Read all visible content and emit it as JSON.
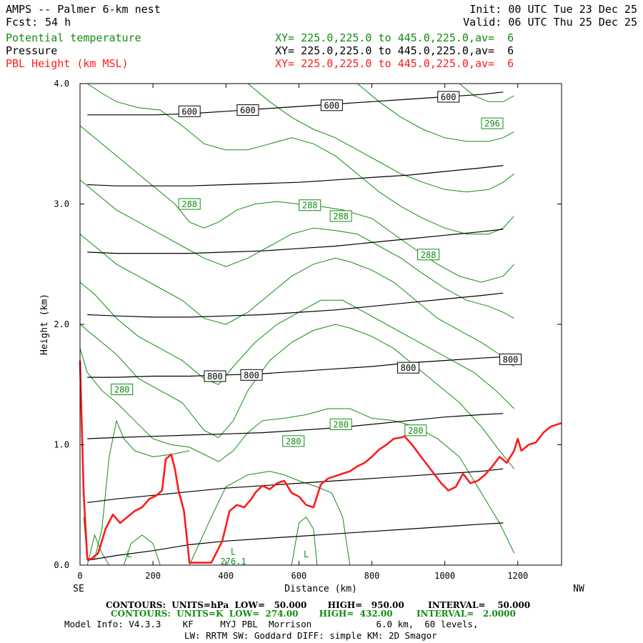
{
  "header": {
    "model_title": "AMPS -- Palmer 6-km nest",
    "forecast_label": "Fcst:",
    "forecast_hours": "54 h",
    "init": "Init: 00 UTC Tue 23 Dec 25",
    "valid": "Valid: 06 UTC Thu 25 Dec 25"
  },
  "fields": [
    {
      "name": "Potential temperature",
      "xy": "XY= 225.0,225.0 to 445.0,225.0,av=  6",
      "color": "#118c11"
    },
    {
      "name": "Pressure",
      "xy": "XY= 225.0,225.0 to 445.0,225.0,av=  6",
      "color": "#000000"
    },
    {
      "name": "PBL Height (km MSL)",
      "xy": "XY= 225.0,225.0 to 445.0,225.0,av=  6",
      "color": "#ff1a1a"
    }
  ],
  "footer": {
    "pressure_contours": "CONTOURS:  UNITS=hPa  LOW=   50.000       HIGH=   950.00        INTERVAL=    50.000",
    "theta_contours": "CONTOURS:  UNITS=K  LOW=  274.00       HIGH=  432.00        INTERVAL=   2.0000",
    "model_info": "Model Info: V4.3.3    KF     MYJ PBL  Morrison            6.0 km,  60 levels,",
    "physics": "LW: RRTM SW: Goddard DIFF: simple KM: 2D Smagor"
  },
  "chart_data": {
    "type": "line",
    "xlabel": "Distance (km)",
    "ylabel": "Height (km)",
    "xlim": [
      0,
      1320
    ],
    "ylim": [
      0,
      4.0
    ],
    "xticks": [
      0,
      200,
      400,
      600,
      800,
      1000,
      1200
    ],
    "yticks": [
      0.0,
      1.0,
      2.0,
      3.0,
      4.0
    ],
    "x_start_label": "SE",
    "x_end_label": "NW",
    "grid": false,
    "colors": {
      "pressure": "#000000",
      "theta": "#118c11",
      "pbl": "#ff1a1a"
    },
    "pbl_height": {
      "name": "PBL Height (km MSL)",
      "x": [
        0,
        10,
        20,
        30,
        50,
        70,
        90,
        110,
        130,
        150,
        170,
        190,
        210,
        225,
        235,
        250,
        260,
        270,
        285,
        300,
        330,
        360,
        390,
        410,
        430,
        450,
        470,
        480,
        500,
        520,
        540,
        560,
        580,
        600,
        620,
        640,
        660,
        680,
        700,
        720,
        740,
        760,
        780,
        800,
        820,
        840,
        860,
        880,
        890,
        910,
        930,
        950,
        970,
        990,
        1010,
        1030,
        1050,
        1070,
        1090,
        1110,
        1130,
        1150,
        1170,
        1190,
        1200,
        1210,
        1230,
        1250,
        1270,
        1290,
        1320
      ],
      "y": [
        1.7,
        0.6,
        0.05,
        0.05,
        0.1,
        0.3,
        0.42,
        0.35,
        0.4,
        0.45,
        0.48,
        0.55,
        0.58,
        0.62,
        0.88,
        0.92,
        0.8,
        0.62,
        0.45,
        0.02,
        0.02,
        0.02,
        0.2,
        0.45,
        0.5,
        0.48,
        0.55,
        0.6,
        0.66,
        0.63,
        0.68,
        0.7,
        0.6,
        0.57,
        0.5,
        0.48,
        0.67,
        0.72,
        0.74,
        0.76,
        0.78,
        0.82,
        0.85,
        0.9,
        0.96,
        1.0,
        1.05,
        1.06,
        1.07,
        1.0,
        0.92,
        0.84,
        0.76,
        0.68,
        0.62,
        0.65,
        0.76,
        0.68,
        0.7,
        0.75,
        0.82,
        0.9,
        0.85,
        0.95,
        1.05,
        0.95,
        1.0,
        1.02,
        1.1,
        1.15,
        1.18
      ]
    },
    "pressure_contours": [
      {
        "level": 950,
        "x": [
          20,
          100,
          200,
          300,
          400,
          500,
          600,
          700,
          800,
          900,
          1000,
          1100,
          1160
        ],
        "y": [
          0.04,
          0.08,
          0.12,
          0.17,
          0.2,
          0.22,
          0.24,
          0.26,
          0.28,
          0.3,
          0.32,
          0.34,
          0.35
        ]
      },
      {
        "level": 900,
        "x": [
          20,
          100,
          200,
          300,
          400,
          500,
          600,
          700,
          800,
          900,
          1000,
          1100,
          1160
        ],
        "y": [
          0.52,
          0.55,
          0.58,
          0.61,
          0.64,
          0.66,
          0.68,
          0.7,
          0.72,
          0.74,
          0.76,
          0.78,
          0.8
        ]
      },
      {
        "level": 850,
        "x": [
          20,
          100,
          200,
          300,
          400,
          500,
          600,
          700,
          800,
          900,
          1000,
          1100,
          1160
        ],
        "y": [
          1.05,
          1.06,
          1.07,
          1.08,
          1.09,
          1.1,
          1.12,
          1.14,
          1.17,
          1.2,
          1.23,
          1.25,
          1.26
        ]
      },
      {
        "level": 800,
        "x": [
          20,
          100,
          200,
          300,
          400,
          500,
          600,
          700,
          800,
          900,
          1000,
          1100,
          1160
        ],
        "y": [
          1.56,
          1.56,
          1.57,
          1.57,
          1.58,
          1.59,
          1.61,
          1.63,
          1.65,
          1.68,
          1.7,
          1.72,
          1.73
        ]
      },
      {
        "level": 750,
        "x": [
          20,
          100,
          200,
          300,
          400,
          500,
          600,
          700,
          800,
          900,
          1000,
          1100,
          1160
        ],
        "y": [
          2.08,
          2.07,
          2.06,
          2.06,
          2.07,
          2.08,
          2.1,
          2.12,
          2.15,
          2.18,
          2.21,
          2.24,
          2.26
        ]
      },
      {
        "level": 700,
        "x": [
          20,
          100,
          200,
          300,
          400,
          500,
          600,
          700,
          800,
          900,
          1000,
          1100,
          1160
        ],
        "y": [
          2.6,
          2.59,
          2.59,
          2.59,
          2.6,
          2.61,
          2.63,
          2.65,
          2.68,
          2.71,
          2.74,
          2.77,
          2.79
        ]
      },
      {
        "level": 650,
        "x": [
          20,
          100,
          200,
          300,
          400,
          500,
          600,
          700,
          800,
          900,
          1000,
          1100,
          1160
        ],
        "y": [
          3.16,
          3.15,
          3.15,
          3.15,
          3.16,
          3.17,
          3.18,
          3.2,
          3.22,
          3.24,
          3.27,
          3.3,
          3.32
        ]
      },
      {
        "level": 600,
        "x": [
          20,
          100,
          200,
          300,
          400,
          500,
          600,
          700,
          800,
          900,
          1000,
          1100,
          1160
        ],
        "y": [
          3.74,
          3.74,
          3.74,
          3.75,
          3.77,
          3.79,
          3.81,
          3.83,
          3.85,
          3.87,
          3.89,
          3.91,
          3.93
        ]
      }
    ],
    "theta_contours": [
      {
        "x": [
          10,
          20,
          40,
          60,
          80,
          100,
          120,
          150,
          200,
          250,
          300
        ],
        "y": [
          0.4,
          0.05,
          0.05,
          0.3,
          0.9,
          1.2,
          1.05,
          0.95,
          0.9,
          0.92,
          0.95
        ]
      },
      {
        "x": [
          0,
          20,
          60,
          100,
          150,
          200,
          250,
          300,
          340,
          380,
          420,
          460,
          500,
          560,
          620,
          680,
          740,
          800,
          860,
          920,
          980,
          1040,
          1100,
          1150,
          1190
        ],
        "y": [
          1.8,
          1.6,
          1.45,
          1.35,
          1.2,
          1.05,
          1.0,
          0.98,
          0.92,
          0.86,
          0.95,
          1.1,
          1.2,
          1.22,
          1.25,
          1.3,
          1.3,
          1.22,
          1.2,
          1.15,
          1.05,
          0.9,
          0.6,
          0.35,
          0.1
        ]
      },
      {
        "x": [
          0,
          40,
          100,
          160,
          220,
          280,
          340,
          380,
          420,
          460,
          520,
          580,
          640,
          700,
          740,
          800,
          860,
          920,
          980,
          1040,
          1100,
          1150,
          1190
        ],
        "y": [
          2.0,
          1.9,
          1.75,
          1.55,
          1.45,
          1.35,
          1.12,
          1.06,
          1.2,
          1.45,
          1.7,
          1.85,
          1.95,
          2.0,
          1.97,
          1.9,
          1.8,
          1.65,
          1.5,
          1.35,
          1.15,
          0.95,
          0.8
        ]
      },
      {
        "x": [
          0,
          40,
          100,
          160,
          220,
          280,
          340,
          380,
          420,
          480,
          540,
          600,
          660,
          720,
          780,
          840,
          900,
          960,
          1020,
          1080,
          1140,
          1190
        ],
        "y": [
          2.35,
          2.25,
          2.05,
          1.9,
          1.8,
          1.7,
          1.55,
          1.5,
          1.65,
          1.85,
          2.0,
          2.1,
          2.2,
          2.2,
          2.1,
          2.0,
          1.9,
          1.8,
          1.7,
          1.6,
          1.45,
          1.3
        ]
      },
      {
        "x": [
          0,
          40,
          100,
          160,
          220,
          280,
          340,
          400,
          460,
          520,
          580,
          640,
          700,
          740,
          800,
          860,
          920,
          980,
          1040,
          1100,
          1150,
          1190
        ],
        "y": [
          2.75,
          2.65,
          2.5,
          2.4,
          2.3,
          2.2,
          2.05,
          2.0,
          2.1,
          2.25,
          2.4,
          2.5,
          2.55,
          2.52,
          2.45,
          2.35,
          2.2,
          2.05,
          1.95,
          1.85,
          1.75,
          1.65
        ]
      },
      {
        "x": [
          0,
          40,
          100,
          160,
          220,
          280,
          340,
          400,
          460,
          520,
          580,
          640,
          700,
          760,
          820,
          880,
          940,
          1000,
          1060,
          1120,
          1160,
          1190
        ],
        "y": [
          3.2,
          3.1,
          2.95,
          2.85,
          2.75,
          2.65,
          2.55,
          2.48,
          2.55,
          2.65,
          2.75,
          2.8,
          2.78,
          2.75,
          2.65,
          2.55,
          2.42,
          2.3,
          2.2,
          2.15,
          2.1,
          2.05
        ]
      },
      {
        "x": [
          0,
          40,
          100,
          160,
          220,
          260,
          300,
          340,
          380,
          430,
          480,
          540,
          600,
          660,
          720,
          800,
          860,
          920,
          980,
          1040,
          1100,
          1160,
          1190
        ],
        "y": [
          3.65,
          3.55,
          3.4,
          3.25,
          3.1,
          3.0,
          2.85,
          2.8,
          2.85,
          2.95,
          3.0,
          3.02,
          3.0,
          2.98,
          2.95,
          2.88,
          2.75,
          2.62,
          2.5,
          2.4,
          2.35,
          2.4,
          2.5
        ]
      },
      {
        "x": [
          20,
          60,
          100,
          160,
          220,
          280,
          340,
          400,
          460,
          520,
          580,
          640,
          700,
          760,
          820,
          880,
          940,
          1000,
          1060,
          1120,
          1160,
          1190
        ],
        "y": [
          4.0,
          3.92,
          3.85,
          3.8,
          3.78,
          3.65,
          3.5,
          3.45,
          3.45,
          3.5,
          3.55,
          3.5,
          3.4,
          3.25,
          3.1,
          2.98,
          2.88,
          2.8,
          2.75,
          2.75,
          2.8,
          2.9
        ]
      },
      {
        "x": [
          460,
          520,
          580,
          640,
          700,
          760,
          820,
          880,
          940,
          1000,
          1060,
          1120,
          1160,
          1190
        ],
        "y": [
          4.0,
          3.85,
          3.72,
          3.62,
          3.55,
          3.45,
          3.35,
          3.25,
          3.18,
          3.12,
          3.1,
          3.12,
          3.18,
          3.25
        ]
      },
      {
        "x": [
          760,
          820,
          880,
          940,
          1000,
          1060,
          1120,
          1160,
          1190
        ],
        "y": [
          4.0,
          3.85,
          3.72,
          3.62,
          3.55,
          3.52,
          3.52,
          3.55,
          3.6
        ]
      },
      {
        "x": [
          1040,
          1080,
          1120,
          1160,
          1190
        ],
        "y": [
          4.0,
          3.9,
          3.85,
          3.85,
          3.9
        ]
      },
      {
        "x": [
          20,
          40,
          60,
          80
        ],
        "y": [
          0.0,
          0.25,
          0.1,
          0.0
        ]
      },
      {
        "x": [
          120,
          140,
          170,
          200,
          220
        ],
        "y": [
          0.0,
          0.18,
          0.25,
          0.18,
          0.0
        ]
      },
      {
        "x": [
          300,
          330,
          360,
          400,
          460,
          520,
          560,
          600,
          650,
          690,
          720,
          740
        ],
        "y": [
          0.0,
          0.2,
          0.4,
          0.65,
          0.75,
          0.78,
          0.75,
          0.7,
          0.65,
          0.6,
          0.4,
          0.0
        ]
      },
      {
        "x": [
          580,
          600,
          620,
          640,
          650
        ],
        "y": [
          0.0,
          0.35,
          0.4,
          0.3,
          0.0
        ]
      }
    ],
    "pressure_labels": [
      {
        "text": "600",
        "x": 300,
        "y": 3.77
      },
      {
        "text": "600",
        "x": 460,
        "y": 3.78
      },
      {
        "text": "600",
        "x": 690,
        "y": 3.82
      },
      {
        "text": "600",
        "x": 1010,
        "y": 3.89
      },
      {
        "text": "800",
        "x": 370,
        "y": 1.57
      },
      {
        "text": "800",
        "x": 470,
        "y": 1.58
      },
      {
        "text": "800",
        "x": 900,
        "y": 1.64
      },
      {
        "text": "800",
        "x": 1180,
        "y": 1.71
      }
    ],
    "theta_labels": [
      {
        "text": "296",
        "x": 1130,
        "y": 3.67
      },
      {
        "text": "288",
        "x": 300,
        "y": 3.0
      },
      {
        "text": "288",
        "x": 630,
        "y": 2.99
      },
      {
        "text": "288",
        "x": 715,
        "y": 2.9
      },
      {
        "text": "288",
        "x": 955,
        "y": 2.58
      },
      {
        "text": "280",
        "x": 115,
        "y": 1.46
      },
      {
        "text": "280",
        "x": 585,
        "y": 1.03
      },
      {
        "text": "280",
        "x": 715,
        "y": 1.17
      },
      {
        "text": "280",
        "x": 920,
        "y": 1.12
      }
    ],
    "low_markers": [
      {
        "text": "L",
        "x": 135,
        "y": 0.09
      },
      {
        "text": "L",
        "x": 420,
        "y": 0.11
      },
      {
        "text": "276.1",
        "x": 420,
        "y": 0.03
      },
      {
        "text": "L",
        "x": 620,
        "y": 0.09
      }
    ]
  }
}
